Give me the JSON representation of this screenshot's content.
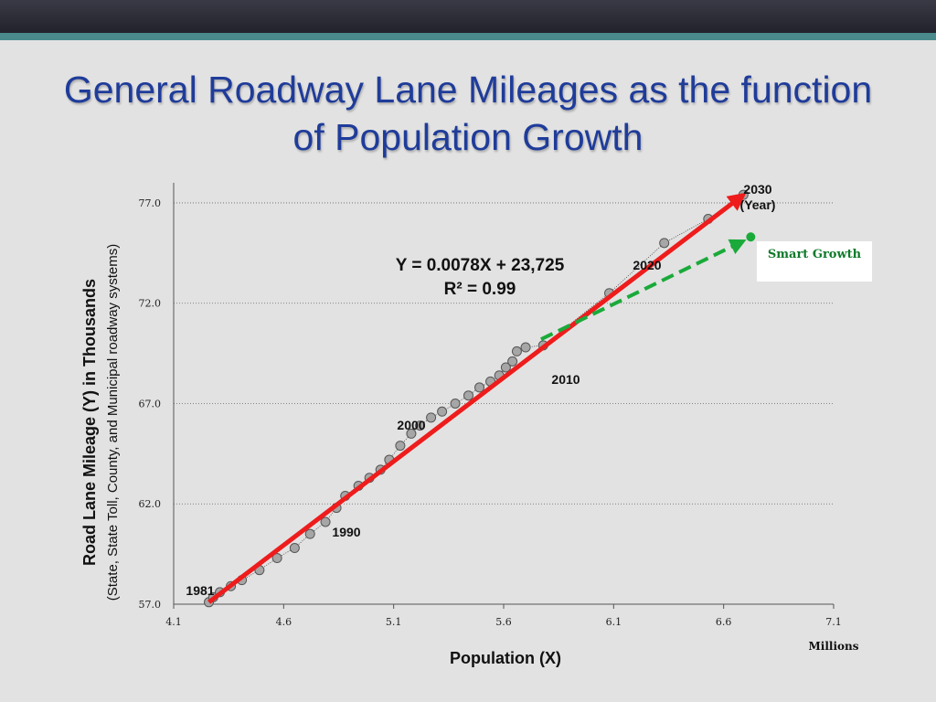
{
  "slide": {
    "title": "General Roadway Lane Mileages as the function of Population Growth"
  },
  "legend_box": {
    "label": "Smart Growth"
  },
  "colors": {
    "title": "#1f3c9a",
    "trend_arrow": "#ee1c1c",
    "smart_growth_arrow": "#1aaa3a",
    "points": "#a6a6a6",
    "background": "#e2e2e2"
  },
  "chart_data": {
    "type": "scatter",
    "title": "",
    "xlabel": "Population (X)",
    "x_units": "Millions",
    "ylabel": "Road Lane Mileage (Y) in Thousands",
    "ylabel_sub": "(State, State Toll, County, and Municipal roadway systems)",
    "xlim": [
      4.1,
      7.1
    ],
    "ylim": [
      57.0,
      78.0
    ],
    "x_ticks": [
      "4.1",
      "4.6",
      "5.1",
      "5.6",
      "6.1",
      "6.6",
      "7.1"
    ],
    "y_ticks": [
      "57.0",
      "62.0",
      "67.0",
      "72.0",
      "77.0"
    ],
    "grid": "horizontal dotted",
    "equation": "Y = 0.0078X + 23,725",
    "r_squared": "R² = 0.99",
    "year_labels": {
      "y1981": "1981",
      "y1990": "1990",
      "y2000": "2000",
      "y2010": "2010",
      "y2020": "2020",
      "y2030": "2030",
      "year_word": "(Year)"
    },
    "series": [
      {
        "values": [
          [
            4.26,
            57.1
          ],
          [
            4.28,
            57.35
          ],
          [
            4.31,
            57.6
          ],
          [
            4.36,
            57.9
          ],
          [
            4.41,
            58.2
          ],
          [
            4.49,
            58.7
          ],
          [
            4.57,
            59.3
          ],
          [
            4.65,
            59.8
          ],
          [
            4.72,
            60.5
          ],
          [
            4.79,
            61.1
          ],
          [
            4.84,
            61.8
          ],
          [
            4.88,
            62.4
          ],
          [
            4.94,
            62.9
          ],
          [
            4.99,
            63.3
          ],
          [
            5.04,
            63.7
          ],
          [
            5.08,
            64.2
          ],
          [
            5.13,
            64.9
          ],
          [
            5.18,
            65.5
          ],
          [
            5.22,
            65.9
          ],
          [
            5.27,
            66.3
          ],
          [
            5.32,
            66.6
          ],
          [
            5.38,
            67.0
          ],
          [
            5.44,
            67.4
          ],
          [
            5.49,
            67.8
          ],
          [
            5.54,
            68.1
          ],
          [
            5.58,
            68.4
          ],
          [
            5.61,
            68.8
          ],
          [
            5.64,
            69.1
          ],
          [
            5.66,
            69.6
          ],
          [
            5.7,
            69.8
          ],
          [
            5.78,
            69.9
          ],
          [
            6.08,
            72.5
          ],
          [
            6.33,
            75.0
          ],
          [
            6.53,
            76.2
          ],
          [
            6.69,
            77.4
          ]
        ]
      }
    ],
    "trend_line": {
      "from": [
        4.26,
        57.1
      ],
      "to": [
        6.69,
        77.4
      ]
    },
    "smart_growth_arrow": {
      "from": [
        5.77,
        70.2
      ],
      "to": [
        6.69,
        75.1
      ],
      "end_marker": [
        6.69,
        75.3
      ]
    }
  }
}
